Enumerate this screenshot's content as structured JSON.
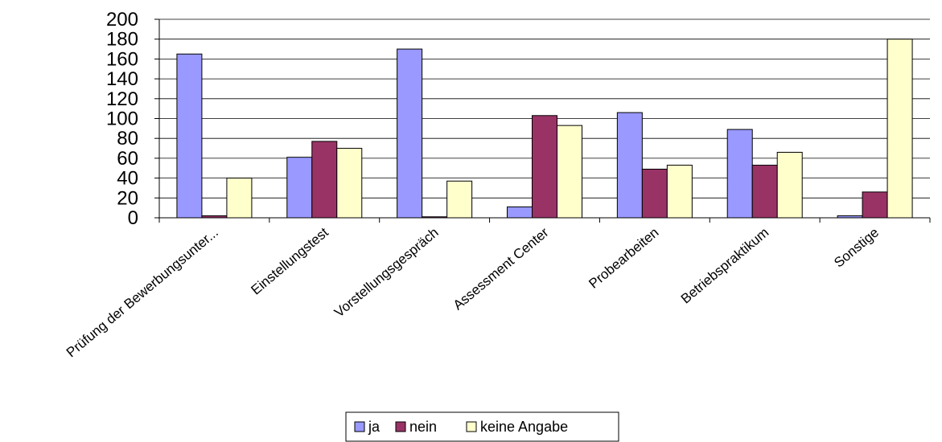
{
  "chart_data": {
    "type": "bar",
    "categories": [
      "Prüfung der Bewerbungsunter...",
      "Einstellungstest",
      "Vorstellungsgespräch",
      "Assessment Center",
      "Probearbeiten",
      "Betriebspraktikum",
      "Sonstige"
    ],
    "series": [
      {
        "name": "ja",
        "color": "#9999ff",
        "values": [
          165,
          61,
          170,
          11,
          106,
          89,
          2
        ]
      },
      {
        "name": "nein",
        "color": "#993366",
        "values": [
          2,
          77,
          1,
          103,
          49,
          53,
          26
        ]
      },
      {
        "name": "keine Angabe",
        "color": "#ffffcc",
        "values": [
          40,
          70,
          37,
          93,
          53,
          66,
          180
        ]
      }
    ],
    "ylim": [
      0,
      200
    ],
    "yticks": [
      0,
      20,
      40,
      60,
      80,
      100,
      120,
      140,
      160,
      180,
      200
    ],
    "grid": true,
    "legend_position": "bottom-center"
  }
}
